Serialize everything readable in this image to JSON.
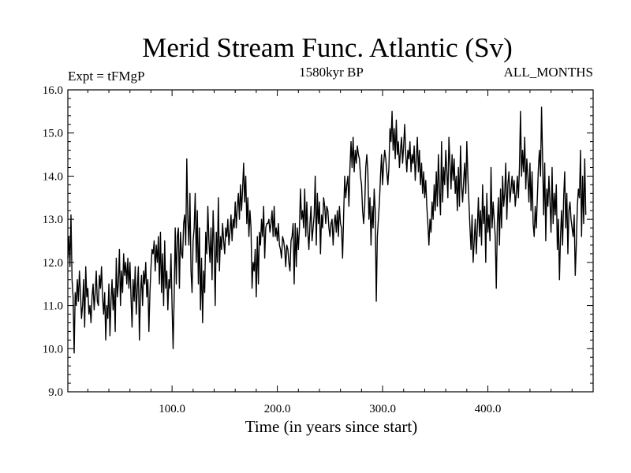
{
  "chart_data": {
    "type": "line",
    "title": "Merid Stream Func. Atlantic (Sv)",
    "subtitle": "1580kyr BP",
    "annotation_left": "Expt = tFMgP",
    "annotation_right": "ALL_MONTHS",
    "xlabel": "Time (in years since start)",
    "ylabel": "",
    "xlim": [
      1,
      500
    ],
    "ylim": [
      9.0,
      16.0
    ],
    "x_ticks": [
      "100.0",
      "200.0",
      "300.0",
      "400.0"
    ],
    "y_ticks": [
      "9.0",
      "10.0",
      "11.0",
      "12.0",
      "13.0",
      "14.0",
      "15.0",
      "16.0"
    ],
    "grid": false,
    "series": [
      {
        "name": "Merid Stream Func. Atlantic",
        "x_start": 1,
        "x_step": 1,
        "values": [
          12.1,
          12.6,
          11.9,
          13.1,
          11.6,
          11.2,
          9.9,
          11.3,
          11.0,
          11.6,
          11.1,
          11.8,
          11.3,
          10.7,
          11.0,
          11.6,
          10.5,
          11.9,
          11.2,
          11.4,
          10.8,
          11.0,
          10.6,
          11.2,
          11.5,
          10.9,
          11.3,
          11.8,
          11.1,
          11.0,
          11.7,
          11.4,
          11.9,
          11.2,
          10.8,
          11.3,
          10.2,
          11.0,
          10.7,
          11.5,
          10.3,
          11.1,
          11.6,
          10.9,
          11.4,
          10.4,
          12.1,
          11.2,
          11.5,
          12.3,
          11.0,
          11.8,
          11.3,
          12.2,
          11.7,
          12.0,
          11.5,
          12.1,
          11.4,
          12.0,
          11.2,
          10.5,
          11.6,
          11.1,
          11.9,
          10.8,
          11.4,
          11.9,
          10.2,
          11.3,
          11.7,
          11.0,
          11.8,
          11.5,
          12.0,
          11.2,
          11.6,
          10.4,
          11.3,
          11.9,
          12.3,
          12.2,
          12.5,
          11.8,
          12.4,
          12.0,
          12.6,
          11.5,
          12.7,
          11.3,
          12.2,
          11.0,
          12.5,
          11.4,
          11.8,
          10.9,
          11.6,
          11.4,
          12.2,
          11.0,
          10.0,
          11.2,
          12.8,
          11.5,
          12.6,
          12.8,
          11.4,
          12.7,
          12.2,
          12.1,
          12.9,
          13.1,
          12.4,
          14.4,
          13.0,
          12.4,
          13.6,
          11.8,
          11.3,
          12.5,
          12.8,
          13.6,
          12.0,
          13.2,
          11.5,
          12.8,
          10.9,
          12.1,
          10.6,
          11.8,
          11.3,
          12.7,
          12.2,
          13.3,
          12.5,
          12.0,
          12.8,
          11.6,
          13.2,
          12.4,
          11.0,
          12.7,
          12.0,
          13.5,
          11.8,
          12.6,
          12.3,
          12.9,
          12.5,
          12.2,
          12.8,
          12.6,
          13.0,
          12.4,
          12.7,
          13.1,
          12.5,
          13.0,
          12.8,
          13.4,
          12.8,
          13.3,
          13.6,
          13.0,
          13.8,
          13.2,
          13.7,
          14.3,
          13.4,
          14.0,
          12.9,
          13.5,
          12.6,
          13.2,
          12.8,
          11.4,
          12.0,
          11.8,
          12.3,
          11.2,
          12.6,
          11.5,
          12.7,
          12.4,
          13.0,
          12.6,
          13.3,
          12.1,
          12.8,
          12.9,
          12.9,
          13.0,
          12.7,
          12.9,
          13.2,
          12.6,
          13.3,
          12.6,
          12.8,
          12.5,
          12.9,
          12.4,
          12.3,
          12.1,
          12.6,
          12.5,
          12.3,
          11.9,
          12.4,
          12.3,
          12.0,
          11.8,
          12.5,
          12.6,
          12.9,
          11.5,
          12.9,
          11.9,
          12.8,
          12.3,
          12.8,
          13.7,
          13.0,
          13.2,
          12.8,
          13.7,
          12.6,
          13.4,
          12.7,
          12.3,
          12.9,
          13.3,
          12.5,
          12.8,
          13.1,
          14.0,
          12.4,
          13.6,
          12.9,
          13.4,
          12.2,
          13.1,
          12.8,
          13.5,
          13.3,
          12.9,
          13.3,
          13.2,
          12.8,
          12.6,
          12.9,
          13.0,
          12.4,
          12.9,
          13.1,
          12.7,
          13.2,
          12.6,
          13.3,
          12.9,
          12.8,
          12.1,
          13.1,
          14.0,
          13.5,
          13.8,
          14.0,
          13.3,
          14.2,
          14.8,
          14.2,
          14.9,
          14.1,
          14.6,
          14.3,
          14.7,
          14.5,
          14.4,
          14.0,
          13.8,
          13.2,
          12.9,
          13.3,
          14.2,
          14.5,
          14.1,
          13.0,
          13.5,
          12.4,
          13.3,
          12.8,
          13.7,
          13.2,
          11.1,
          12.6,
          13.0,
          13.4,
          14.0,
          14.5,
          13.8,
          14.3,
          14.6,
          14.4,
          14.1,
          13.8,
          14.2,
          15.1,
          14.8,
          15.5,
          14.6,
          15.1,
          14.4,
          15.3,
          14.5,
          14.8,
          14.2,
          14.6,
          14.9,
          14.3,
          14.7,
          15.2,
          14.5,
          14.1,
          14.6,
          14.4,
          14.8,
          14.1,
          14.5,
          14.3,
          14.7,
          13.9,
          14.4,
          14.9,
          14.1,
          14.6,
          13.8,
          14.3,
          13.6,
          14.1,
          13.5,
          13.9,
          13.3,
          12.9,
          12.4,
          13.0,
          12.7,
          13.4,
          13.0,
          13.8,
          13.2,
          14.1,
          13.3,
          14.5,
          13.7,
          13.1,
          14.8,
          13.4,
          14.2,
          13.8,
          14.6,
          14.1,
          13.5,
          14.9,
          14.3,
          13.7,
          14.5,
          13.9,
          14.4,
          13.6,
          14.0,
          13.2,
          14.2,
          13.3,
          14.7,
          13.8,
          13.4,
          13.9,
          14.3,
          13.6,
          14.8,
          14.0,
          13.4,
          12.8,
          12.3,
          13.1,
          12.0,
          12.5,
          13.0,
          12.2,
          12.8,
          13.5,
          12.6,
          13.2,
          12.4,
          13.8,
          12.9,
          13.3,
          12.0,
          13.6,
          12.7,
          13.1,
          12.5,
          14.2,
          12.8,
          13.4,
          13.0,
          12.6,
          11.4,
          12.9,
          13.5,
          12.4,
          13.7,
          12.8,
          14.0,
          13.3,
          13.6,
          14.3,
          13.0,
          13.8,
          14.1,
          13.4,
          13.7,
          14.0,
          13.6,
          13.9,
          13.3,
          13.6,
          14.0,
          13.5,
          14.2,
          15.5,
          14.0,
          14.6,
          14.1,
          14.9,
          13.7,
          14.4,
          14.0,
          13.4,
          14.3,
          13.2,
          14.1,
          12.9,
          12.6,
          13.3,
          12.8,
          13.5,
          14.2,
          14.6,
          14.0,
          15.6,
          14.4,
          13.1,
          14.3,
          12.5,
          13.7,
          13.3,
          14.0,
          13.4,
          12.7,
          14.2,
          12.9,
          13.6,
          13.1,
          13.8,
          12.3,
          13.0,
          11.6,
          12.6,
          13.2,
          12.4,
          13.5,
          14.1,
          12.8,
          13.6,
          12.2,
          13.2,
          13.4,
          13.0,
          12.8,
          12.6,
          13.1,
          11.7,
          12.4,
          13.3,
          13.7,
          13.5,
          14.6,
          12.6,
          14.0,
          12.9,
          14.4,
          13.1
        ]
      }
    ]
  }
}
